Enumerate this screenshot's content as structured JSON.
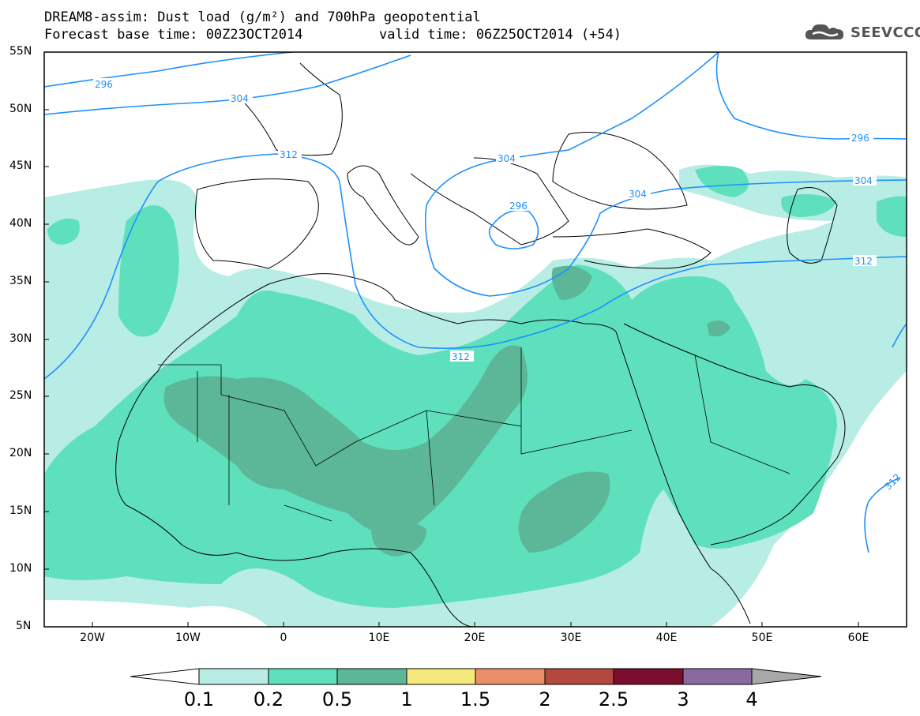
{
  "title": {
    "line1": "DREAM8-assim: Dust load (g/m²) and 700hPa geopotential",
    "line2_base": "Forecast base time: 00Z23OCT2014",
    "line2_valid": "valid time: 06Z25OCT2014 (+54)"
  },
  "logo": {
    "text": "SEEVCCC",
    "icon": "cloud-icon"
  },
  "map_data": {
    "type": "map",
    "lon_range": [
      -25,
      65
    ],
    "lat_range": [
      5,
      55
    ],
    "y_ticks": [
      "55N",
      "50N",
      "45N",
      "40N",
      "35N",
      "30N",
      "25N",
      "20N",
      "15N",
      "10N",
      "5N"
    ],
    "x_ticks": [
      "20W",
      "10W",
      "0",
      "10E",
      "20E",
      "30E",
      "40E",
      "50E",
      "60E"
    ],
    "contour_labels": [
      "296",
      "304",
      "312",
      "304",
      "296",
      "304",
      "312",
      "296",
      "304",
      "312",
      "312"
    ],
    "contour_color": "#1e90ff"
  },
  "colorbar": {
    "levels": [
      "0.1",
      "0.2",
      "0.5",
      "1",
      "1.5",
      "2",
      "2.5",
      "3",
      "4"
    ],
    "colors": [
      "#b7ede4",
      "#5ee0bd",
      "#5bb797",
      "#f4e97a",
      "#ea9068",
      "#b4483c",
      "#7b0e2e",
      "#8a6a9e",
      "#a8a8a8"
    ]
  }
}
